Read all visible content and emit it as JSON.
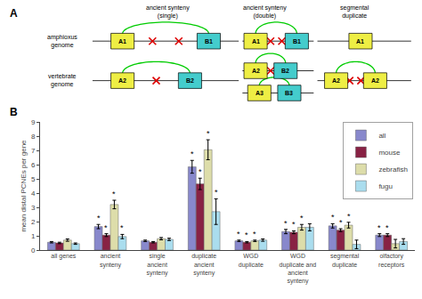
{
  "chart_data": {
    "type": "bar",
    "categories": [
      "all genes",
      "ancient\nsynteny",
      "single\nancient\nsynteny",
      "duplicate\nancient\nsynteny",
      "WGD\nduplicate",
      "WGD\nduplicate and\nancient\nsynteny",
      "segmental\nduplicate",
      "olfactory\nreceptors"
    ],
    "series": [
      {
        "name": "all",
        "color": "#8888cc",
        "values": [
          0.55,
          1.65,
          0.65,
          5.85,
          0.65,
          1.3,
          1.7,
          1.05
        ],
        "errors": [
          0.05,
          0.15,
          0.05,
          0.45,
          0.05,
          0.15,
          0.15,
          0.1
        ],
        "annotations": [
          null,
          "*",
          null,
          "*",
          "*",
          "*",
          "*",
          "*"
        ]
      },
      {
        "name": "mouse",
        "color": "#882244",
        "values": [
          0.5,
          1.05,
          0.55,
          4.65,
          0.55,
          1.25,
          1.4,
          1.05
        ],
        "errors": [
          0.05,
          0.1,
          0.05,
          0.4,
          0.05,
          0.1,
          0.1,
          0.1
        ],
        "annotations": [
          null,
          "*",
          null,
          "*",
          "*",
          "*",
          "*",
          "*"
        ]
      },
      {
        "name": "zebrafish",
        "color": "#ddddaa",
        "values": [
          0.7,
          3.2,
          0.8,
          7.05,
          0.65,
          1.6,
          1.75,
          0.45
        ],
        "errors": [
          0.08,
          0.3,
          0.08,
          0.7,
          0.05,
          0.2,
          0.2,
          0.3
        ],
        "annotations": [
          null,
          "*",
          null,
          "*",
          "*",
          "*",
          "*",
          null
        ]
      },
      {
        "name": "fugu",
        "color": "#aaddee",
        "values": [
          0.45,
          0.95,
          0.75,
          2.7,
          0.7,
          1.6,
          0.4,
          0.6
        ],
        "errors": [
          0.05,
          0.15,
          0.08,
          0.9,
          0.08,
          0.25,
          0.3,
          0.2
        ],
        "annotations": [
          null,
          "*",
          null,
          "*",
          null,
          null,
          null,
          null
        ]
      }
    ],
    "ylabel": "mean distal PCNEs per gene",
    "ylim": [
      0,
      9
    ],
    "yticks": [
      0,
      1,
      2,
      3,
      4,
      5,
      6,
      7,
      8,
      9
    ],
    "grid": false,
    "legend": "upper right",
    "annotations": [
      "A",
      "B",
      "amphioxus\ngenome",
      "vertebrate\ngenome",
      "ancient synteny\n(single)",
      "ancient synteny\n(double)",
      "segmental\nduplicate",
      "A1",
      "B1",
      "A2",
      "B2",
      "A1",
      "B1",
      "A2",
      "B2",
      "A3",
      "B3",
      "A1",
      "A2",
      "A2"
    ]
  }
}
